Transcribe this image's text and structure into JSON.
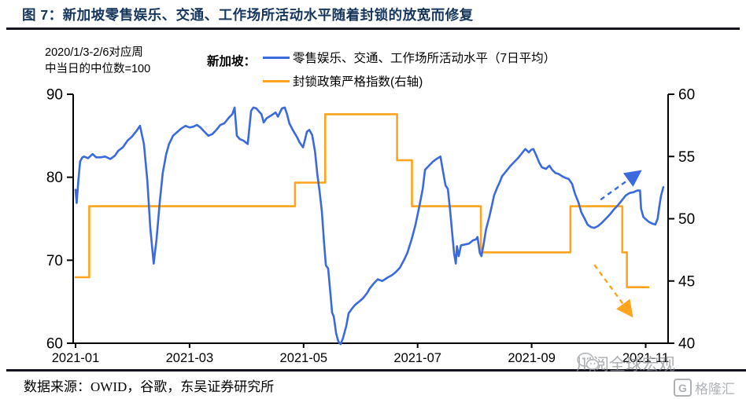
{
  "title": {
    "text": "图 7：新加坡零售娱乐、交通、工作场所活动水平随着封锁的放宽而修复"
  },
  "axis_note": {
    "line1": "2020/1/3-2/6对应周",
    "line2": "中当日的中位数=100"
  },
  "legend": {
    "name": "新加坡：",
    "items": [
      {
        "label": "零售娱乐、交通、工作场所活动水平（7日平均）",
        "color": "#3b69de"
      },
      {
        "label": "封锁政策严格指数(右轴)",
        "color": "#ffa41c"
      }
    ]
  },
  "source": {
    "text": "数据来源：OWID，谷歌，东吴证券研究所"
  },
  "watermark": {
    "wechat_text": "川阅全球宏观",
    "gelonghui_text": "格隆汇",
    "gelonghui_badge": "G"
  },
  "chart_data": {
    "type": "line",
    "title": "新加坡零售娱乐、交通、工作场所活动水平随着封锁的放宽而修复",
    "x_ticks": [
      "2021-01",
      "2021-03",
      "2021-05",
      "2021-07",
      "2021-09",
      "2021-11"
    ],
    "x_unit_months": "t = 1 corresponds to 2021-01, t = 11 to 2021-11",
    "left_axis": {
      "min": 60,
      "max": 90,
      "ticks": [
        60,
        70,
        80,
        90
      ]
    },
    "right_axis": {
      "min": 40,
      "max": 60,
      "ticks": [
        40,
        45,
        50,
        55,
        60
      ]
    },
    "grid": false,
    "legend_position": "top",
    "series": [
      {
        "name": "零售娱乐、交通、工作场所活动水平（7日平均）",
        "axis": "left",
        "color": "#3b69de",
        "style": "solid",
        "points": [
          [
            1.0,
            78.5
          ],
          [
            1.02,
            76.9
          ],
          [
            1.05,
            79.6
          ],
          [
            1.08,
            81.9
          ],
          [
            1.12,
            82.4
          ],
          [
            1.15,
            82.5
          ],
          [
            1.22,
            82.3
          ],
          [
            1.3,
            82.8
          ],
          [
            1.36,
            82.4
          ],
          [
            1.44,
            82.4
          ],
          [
            1.52,
            82.5
          ],
          [
            1.61,
            82.2
          ],
          [
            1.69,
            82.6
          ],
          [
            1.75,
            83.2
          ],
          [
            1.83,
            83.6
          ],
          [
            1.91,
            84.4
          ],
          [
            1.99,
            84.9
          ],
          [
            2.06,
            85.5
          ],
          [
            2.13,
            86.2
          ],
          [
            2.2,
            84.0
          ],
          [
            2.26,
            79.5
          ],
          [
            2.31,
            74.0
          ],
          [
            2.37,
            69.6
          ],
          [
            2.42,
            72.5
          ],
          [
            2.48,
            77.2
          ],
          [
            2.53,
            80.5
          ],
          [
            2.59,
            82.8
          ],
          [
            2.64,
            84.0
          ],
          [
            2.71,
            85.0
          ],
          [
            2.79,
            85.5
          ],
          [
            2.86,
            85.9
          ],
          [
            2.93,
            86.2
          ],
          [
            3.0,
            86.0
          ],
          [
            3.07,
            86.1
          ],
          [
            3.13,
            86.3
          ],
          [
            3.19,
            86.0
          ],
          [
            3.26,
            85.5
          ],
          [
            3.33,
            85.0
          ],
          [
            3.4,
            85.2
          ],
          [
            3.47,
            85.7
          ],
          [
            3.54,
            86.3
          ],
          [
            3.61,
            86.5
          ],
          [
            3.68,
            87.1
          ],
          [
            3.75,
            87.6
          ],
          [
            3.79,
            88.4
          ],
          [
            3.83,
            85.0
          ],
          [
            3.88,
            84.6
          ],
          [
            3.95,
            84.4
          ],
          [
            4.02,
            84.0
          ],
          [
            4.08,
            88.0
          ],
          [
            4.12,
            88.4
          ],
          [
            4.17,
            88.3
          ],
          [
            4.22,
            87.9
          ],
          [
            4.26,
            87.6
          ],
          [
            4.3,
            86.6
          ],
          [
            4.35,
            87.1
          ],
          [
            4.42,
            87.4
          ],
          [
            4.51,
            87.8
          ],
          [
            4.55,
            87.3
          ],
          [
            4.62,
            88.3
          ],
          [
            4.67,
            88.4
          ],
          [
            4.71,
            87.6
          ],
          [
            4.75,
            86.5
          ],
          [
            4.81,
            85.7
          ],
          [
            4.88,
            84.9
          ],
          [
            4.93,
            84.2
          ],
          [
            4.99,
            83.6
          ],
          [
            5.06,
            85.5
          ],
          [
            5.1,
            85.7
          ],
          [
            5.15,
            85.1
          ],
          [
            5.2,
            83.1
          ],
          [
            5.24,
            80.4
          ],
          [
            5.28,
            78.3
          ],
          [
            5.32,
            75.9
          ],
          [
            5.36,
            72.0
          ],
          [
            5.39,
            69.4
          ],
          [
            5.43,
            69.0
          ],
          [
            5.47,
            66.0
          ],
          [
            5.5,
            63.7
          ],
          [
            5.53,
            63.2
          ],
          [
            5.57,
            61.2
          ],
          [
            5.61,
            60.2
          ],
          [
            5.65,
            59.9
          ],
          [
            5.69,
            60.6
          ],
          [
            5.75,
            62.1
          ],
          [
            5.79,
            63.6
          ],
          [
            5.84,
            64.1
          ],
          [
            5.9,
            64.6
          ],
          [
            5.97,
            65.0
          ],
          [
            6.04,
            65.4
          ],
          [
            6.11,
            66.0
          ],
          [
            6.16,
            66.6
          ],
          [
            6.23,
            67.2
          ],
          [
            6.3,
            67.7
          ],
          [
            6.38,
            67.5
          ],
          [
            6.47,
            67.9
          ],
          [
            6.55,
            68.2
          ],
          [
            6.62,
            68.6
          ],
          [
            6.69,
            69.1
          ],
          [
            6.76,
            70.0
          ],
          [
            6.82,
            70.9
          ],
          [
            6.89,
            72.4
          ],
          [
            6.96,
            74.2
          ],
          [
            7.03,
            76.5
          ],
          [
            7.09,
            78.6
          ],
          [
            7.13,
            80.9
          ],
          [
            7.2,
            81.4
          ],
          [
            7.27,
            81.9
          ],
          [
            7.33,
            82.2
          ],
          [
            7.4,
            82.5
          ],
          [
            7.44,
            80.9
          ],
          [
            7.49,
            79.0
          ],
          [
            7.53,
            78.6
          ],
          [
            7.57,
            76.0
          ],
          [
            7.61,
            73.0
          ],
          [
            7.64,
            70.8
          ],
          [
            7.67,
            69.6
          ],
          [
            7.69,
            71.7
          ],
          [
            7.72,
            70.5
          ],
          [
            7.76,
            71.8
          ],
          [
            7.83,
            71.9
          ],
          [
            7.9,
            72.0
          ],
          [
            7.97,
            72.4
          ],
          [
            8.02,
            72.5
          ],
          [
            8.05,
            72.8
          ],
          [
            8.09,
            70.9
          ],
          [
            8.12,
            70.5
          ],
          [
            8.16,
            72.0
          ],
          [
            8.2,
            73.7
          ],
          [
            8.26,
            75.3
          ],
          [
            8.3,
            76.5
          ],
          [
            8.34,
            77.8
          ],
          [
            8.4,
            78.8
          ],
          [
            8.44,
            79.4
          ],
          [
            8.48,
            80.1
          ],
          [
            8.55,
            80.7
          ],
          [
            8.62,
            81.3
          ],
          [
            8.69,
            81.8
          ],
          [
            8.76,
            82.3
          ],
          [
            8.83,
            82.9
          ],
          [
            8.89,
            83.4
          ],
          [
            8.95,
            83.0
          ],
          [
            8.99,
            83.3
          ],
          [
            9.03,
            83.4
          ],
          [
            9.09,
            82.5
          ],
          [
            9.13,
            81.8
          ],
          [
            9.18,
            81.2
          ],
          [
            9.25,
            81.0
          ],
          [
            9.31,
            81.4
          ],
          [
            9.36,
            80.9
          ],
          [
            9.42,
            80.5
          ],
          [
            9.47,
            80.4
          ],
          [
            9.54,
            80.1
          ],
          [
            9.6,
            79.9
          ],
          [
            9.65,
            79.8
          ],
          [
            9.71,
            79.2
          ],
          [
            9.76,
            78.0
          ],
          [
            9.82,
            77.0
          ],
          [
            9.87,
            75.8
          ],
          [
            9.93,
            75.0
          ],
          [
            9.98,
            74.3
          ],
          [
            10.04,
            74.0
          ],
          [
            10.1,
            73.9
          ],
          [
            10.16,
            74.1
          ],
          [
            10.23,
            74.5
          ],
          [
            10.3,
            75.0
          ],
          [
            10.37,
            75.5
          ],
          [
            10.44,
            76.1
          ],
          [
            10.51,
            76.6
          ],
          [
            10.58,
            77.2
          ],
          [
            10.65,
            77.8
          ],
          [
            10.72,
            78.1
          ],
          [
            10.79,
            78.2
          ],
          [
            10.85,
            78.4
          ],
          [
            10.9,
            78.4
          ],
          [
            10.92,
            76.2
          ],
          [
            10.96,
            75.2
          ],
          [
            11.01,
            74.9
          ],
          [
            11.06,
            74.6
          ],
          [
            11.12,
            74.4
          ],
          [
            11.17,
            74.3
          ],
          [
            11.21,
            75.0
          ],
          [
            11.24,
            76.5
          ],
          [
            11.27,
            77.8
          ],
          [
            11.31,
            78.8
          ]
        ]
      },
      {
        "name": "封锁政策严格指数(右轴)",
        "axis": "right",
        "color": "#ffa41c",
        "style": "solid-step",
        "points": [
          [
            1.0,
            45.3
          ],
          [
            1.24,
            45.3
          ],
          [
            1.24,
            51.0
          ],
          [
            4.85,
            51.0
          ],
          [
            4.85,
            52.9
          ],
          [
            5.38,
            52.9
          ],
          [
            5.38,
            58.4
          ],
          [
            6.64,
            58.4
          ],
          [
            6.64,
            54.7
          ],
          [
            6.9,
            54.7
          ],
          [
            6.9,
            51.0
          ],
          [
            8.11,
            51.0
          ],
          [
            8.11,
            47.3
          ],
          [
            9.68,
            47.3
          ],
          [
            9.68,
            51.0
          ],
          [
            10.59,
            51.0
          ],
          [
            10.59,
            47.3
          ],
          [
            10.67,
            47.3
          ],
          [
            10.67,
            44.5
          ],
          [
            11.05,
            44.5
          ]
        ]
      }
    ],
    "annotations": {
      "arrows": [
        {
          "name": "mobility-trend-arrow",
          "axis": "left",
          "color": "#3b69de",
          "from": [
            10.21,
            77.3
          ],
          "to": [
            10.88,
            80.6
          ],
          "style": "dashed"
        },
        {
          "name": "stringency-trend-arrow",
          "axis": "right",
          "color": "#ffa41c",
          "from": [
            10.1,
            46.3
          ],
          "to": [
            10.74,
            42.3
          ],
          "style": "dashed"
        }
      ]
    }
  }
}
